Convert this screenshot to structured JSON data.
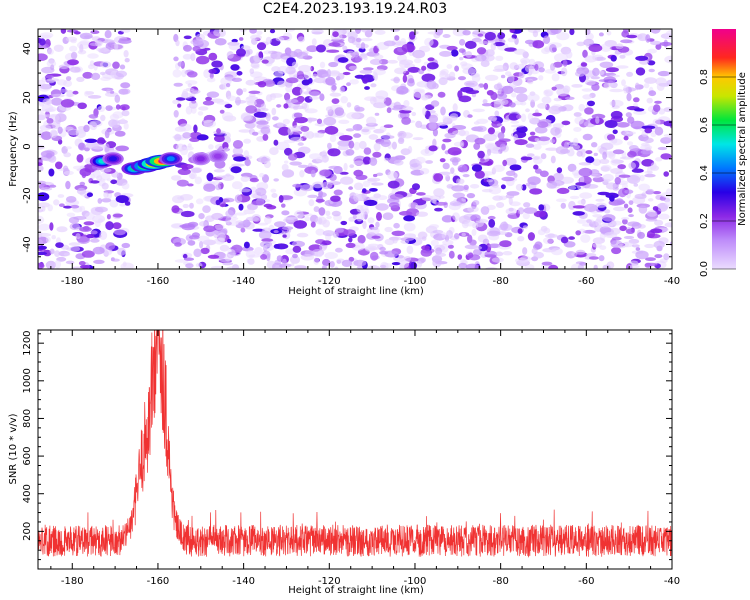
{
  "title": "C2E4.2023.193.19.24.R03",
  "colors": {
    "snr_line": "#f03232",
    "spectrogram_base": "#8a2be2",
    "axis": "#000000"
  },
  "chart_data": [
    {
      "type": "heatmap",
      "xlabel": "Height of straight line (km)",
      "ylabel": "Frequency (Hz)",
      "xlim": [
        -188,
        -40
      ],
      "ylim": [
        -50,
        48
      ],
      "xticks": [
        -180,
        -160,
        -140,
        -120,
        -100,
        -80,
        -60,
        -40
      ],
      "yticks": [
        -40,
        -20,
        0,
        20,
        40
      ],
      "colorbar": {
        "label": "Normalized spectral amplitude",
        "range": [
          0.0,
          1.0
        ],
        "ticks": [
          "0.0",
          "0.2",
          "0.4",
          "0.6",
          "0.8"
        ],
        "colormap": "purple-blue-cyan-green-yellow-red-magenta"
      },
      "blank_band_km": [
        -167,
        -156
      ],
      "signal": {
        "description_points": [
          {
            "x": -173,
            "y": -6,
            "amp": 0.45
          },
          {
            "x": -170.5,
            "y": -5,
            "amp": 0.25
          },
          {
            "x": -165.5,
            "y": -9,
            "amp": 0.5
          },
          {
            "x": -163,
            "y": -8,
            "amp": 0.65
          },
          {
            "x": -161,
            "y": -7,
            "amp": 0.85
          },
          {
            "x": -159,
            "y": -6,
            "amp": 0.95
          },
          {
            "x": -157,
            "y": -5,
            "amp": 0.35
          },
          {
            "x": -150,
            "y": -5,
            "amp": 0.15
          },
          {
            "x": -146,
            "y": -4,
            "amp": 0.12
          }
        ]
      },
      "grid": false
    },
    {
      "type": "line",
      "xlabel": "Height of straight line (km)",
      "ylabel": "SNR (10 * v/v)",
      "xlim": [
        -188,
        -40
      ],
      "ylim": [
        0,
        1270
      ],
      "xticks": [
        -180,
        -160,
        -140,
        -120,
        -100,
        -80,
        -60,
        -40
      ],
      "yticks": [
        200,
        400,
        600,
        800,
        1000,
        1200
      ],
      "series": [
        {
          "baseline_range": [
            80,
            250
          ],
          "peak": {
            "x": -160,
            "y": 1260
          },
          "key_points": [
            {
              "x": -188,
              "y": 150
            },
            {
              "x": -168,
              "y": 150
            },
            {
              "x": -166,
              "y": 250
            },
            {
              "x": -164,
              "y": 550
            },
            {
              "x": -162,
              "y": 800
            },
            {
              "x": -160.5,
              "y": 1200
            },
            {
              "x": -160,
              "y": 1260
            },
            {
              "x": -159,
              "y": 1150
            },
            {
              "x": -158,
              "y": 800
            },
            {
              "x": -157,
              "y": 450
            },
            {
              "x": -156,
              "y": 250
            },
            {
              "x": -154,
              "y": 150
            },
            {
              "x": -40,
              "y": 150
            }
          ]
        }
      ],
      "grid": false
    }
  ]
}
